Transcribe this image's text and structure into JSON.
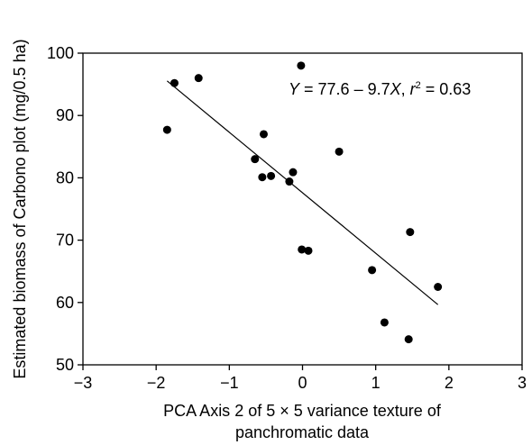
{
  "chart_data": {
    "type": "scatter",
    "xlabel_lines": [
      "PCA Axis 2 of 5 × 5 variance texture of",
      "panchromatic data"
    ],
    "ylabel": "Estimated biomass of Carbono plot (mg/0.5 ha)",
    "xlim": [
      -3,
      3
    ],
    "ylim": [
      50,
      100
    ],
    "xticks": [
      -3,
      -2,
      -1,
      0,
      1,
      2,
      3
    ],
    "yticks": [
      50,
      60,
      70,
      80,
      90,
      100
    ],
    "grid": false,
    "points": [
      {
        "x": -1.85,
        "y": 87.7
      },
      {
        "x": -1.75,
        "y": 95.2
      },
      {
        "x": -1.42,
        "y": 96.0
      },
      {
        "x": -0.65,
        "y": 83.0
      },
      {
        "x": -0.55,
        "y": 80.1
      },
      {
        "x": -0.53,
        "y": 87.0
      },
      {
        "x": -0.43,
        "y": 80.3
      },
      {
        "x": -0.18,
        "y": 79.4
      },
      {
        "x": -0.13,
        "y": 80.9
      },
      {
        "x": -0.02,
        "y": 98.0
      },
      {
        "x": -0.01,
        "y": 68.5
      },
      {
        "x": 0.08,
        "y": 68.3
      },
      {
        "x": 0.5,
        "y": 84.2
      },
      {
        "x": 0.95,
        "y": 65.2
      },
      {
        "x": 1.12,
        "y": 56.8
      },
      {
        "x": 1.45,
        "y": 54.1
      },
      {
        "x": 1.47,
        "y": 71.3
      },
      {
        "x": 1.85,
        "y": 62.5
      }
    ],
    "regression": {
      "intercept": 77.6,
      "slope": -9.7,
      "x_range": [
        -1.85,
        1.85
      ]
    },
    "annotation": {
      "y_var": "Y",
      "equation_middle": " = 77.6 – 9.7",
      "x_var": "X",
      "separator": ", ",
      "r_var": "r",
      "r_exp": "2",
      "r_value": " = 0.63"
    }
  }
}
